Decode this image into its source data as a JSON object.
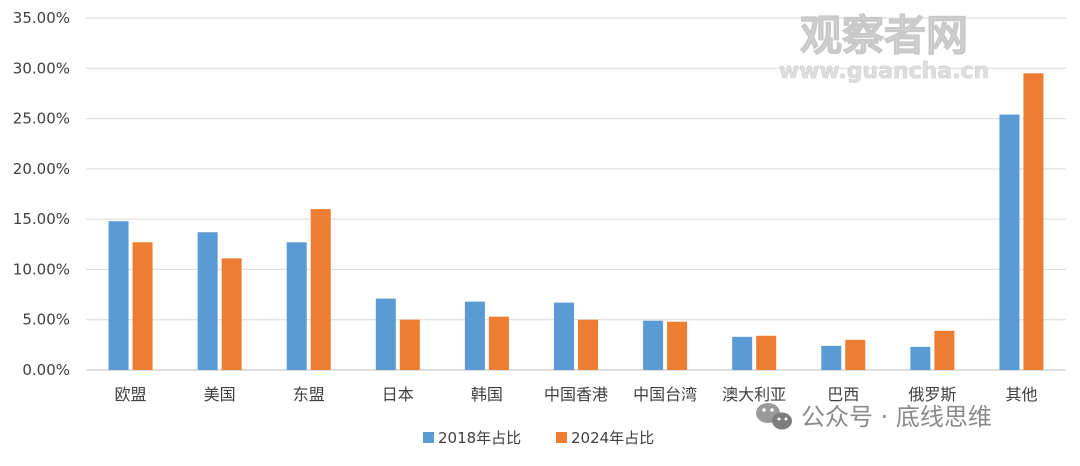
{
  "chart_data": {
    "type": "bar",
    "categories": [
      "欧盟",
      "美国",
      "东盟",
      "日本",
      "韩国",
      "中国香港",
      "中国台湾",
      "澳大利亚",
      "巴西",
      "俄罗斯",
      "其他"
    ],
    "series": [
      {
        "name": "2018年占比",
        "color": "#5b9bd5",
        "values": [
          0.148,
          0.137,
          0.127,
          0.071,
          0.068,
          0.067,
          0.049,
          0.033,
          0.024,
          0.023,
          0.254
        ]
      },
      {
        "name": "2024年占比",
        "color": "#ed7d31",
        "values": [
          0.127,
          0.111,
          0.16,
          0.05,
          0.053,
          0.05,
          0.048,
          0.034,
          0.03,
          0.039,
          0.295
        ]
      }
    ],
    "ylim": [
      0,
      0.35
    ],
    "yticks": [
      "0.00%",
      "5.00%",
      "10.00%",
      "15.00%",
      "20.00%",
      "25.00%",
      "30.00%",
      "35.00%"
    ],
    "grid": true,
    "legend_position": "bottom-center",
    "title": "",
    "xlabel": "",
    "ylabel": ""
  },
  "watermark": {
    "text": "观察者网",
    "url": "www.guancha.cn"
  },
  "credit": {
    "text": "公众号 · 底线思维",
    "icon": "wechat-icon"
  }
}
